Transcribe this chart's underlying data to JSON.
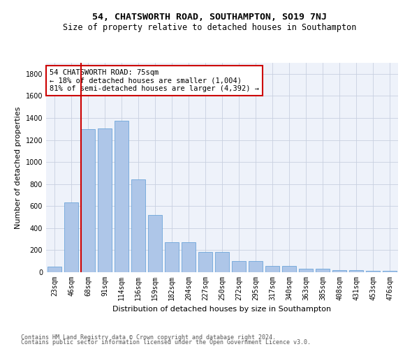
{
  "title": "54, CHATSWORTH ROAD, SOUTHAMPTON, SO19 7NJ",
  "subtitle": "Size of property relative to detached houses in Southampton",
  "xlabel": "Distribution of detached houses by size in Southampton",
  "ylabel": "Number of detached properties",
  "categories": [
    "23sqm",
    "46sqm",
    "68sqm",
    "91sqm",
    "114sqm",
    "136sqm",
    "159sqm",
    "182sqm",
    "204sqm",
    "227sqm",
    "250sqm",
    "272sqm",
    "295sqm",
    "317sqm",
    "340sqm",
    "363sqm",
    "385sqm",
    "408sqm",
    "431sqm",
    "453sqm",
    "476sqm"
  ],
  "values": [
    50,
    635,
    1300,
    1305,
    1375,
    840,
    520,
    275,
    270,
    185,
    185,
    100,
    100,
    60,
    60,
    32,
    32,
    20,
    20,
    12,
    12
  ],
  "bar_color": "#aec6e8",
  "bar_edgecolor": "#5b9bd5",
  "vline_color": "#cc0000",
  "vline_position": 2,
  "annotation_text_line1": "54 CHATSWORTH ROAD: 75sqm",
  "annotation_text_line2": "← 18% of detached houses are smaller (1,004)",
  "annotation_text_line3": "81% of semi-detached houses are larger (4,392) →",
  "ylim": [
    0,
    1900
  ],
  "yticks": [
    0,
    200,
    400,
    600,
    800,
    1000,
    1200,
    1400,
    1600,
    1800
  ],
  "grid_color": "#c8d0e0",
  "background_color": "#eef2fa",
  "footer_line1": "Contains HM Land Registry data © Crown copyright and database right 2024.",
  "footer_line2": "Contains public sector information licensed under the Open Government Licence v3.0.",
  "title_fontsize": 9.5,
  "subtitle_fontsize": 8.5,
  "tick_fontsize": 7,
  "ylabel_fontsize": 8,
  "xlabel_fontsize": 8,
  "annotation_fontsize": 7.5,
  "footer_fontsize": 6
}
